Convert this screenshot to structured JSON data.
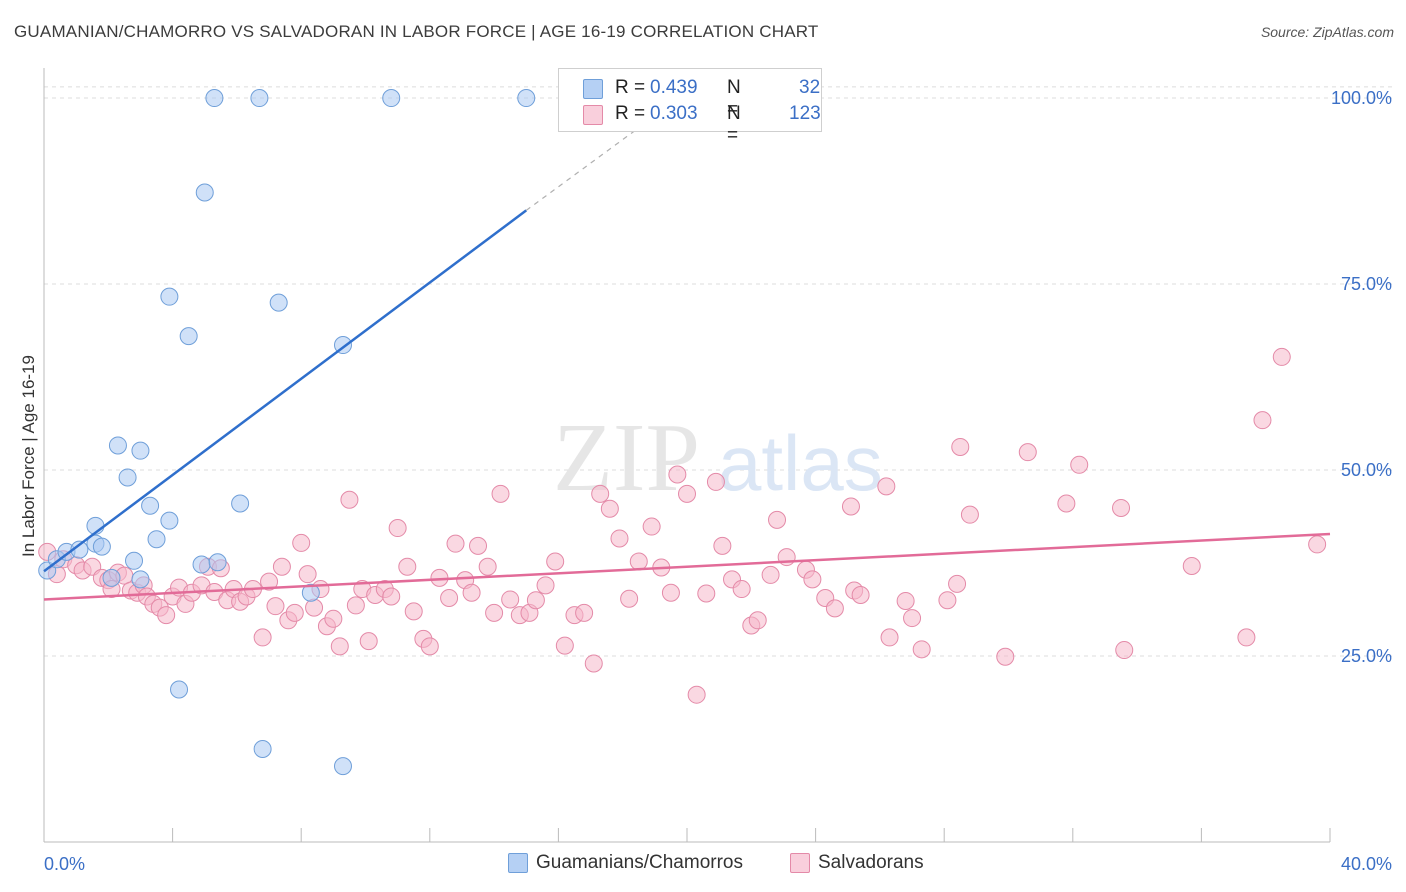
{
  "chart_data": {
    "type": "scatter",
    "title": "GUAMANIAN/CHAMORRO VS SALVADORAN IN LABOR FORCE | AGE 16-19 CORRELATION CHART",
    "source": "Source: ZipAtlas.com",
    "xlabel": "",
    "ylabel": "In Labor Force | Age 16-19",
    "xlim": [
      0,
      40
    ],
    "ylim": [
      0,
      103.5
    ],
    "x_tick_labels": [
      "0.0%",
      "40.0%"
    ],
    "y_tick_labels": [
      "25.0%",
      "50.0%",
      "75.0%",
      "100.0%"
    ],
    "y_tick_values": [
      25,
      50,
      75,
      100
    ],
    "grid": true,
    "watermark": {
      "zip": "ZIP",
      "atlas": "atlas"
    },
    "legend": {
      "position": "top-center",
      "r_label": "R =",
      "n_label": "N =",
      "entries": [
        {
          "r": "0.439",
          "n": "32",
          "color": "#a9c8f2"
        },
        {
          "r": "0.303",
          "n": "123",
          "color": "#f6b8cb"
        }
      ]
    },
    "series": [
      {
        "name": "Guamanians/Chamorros",
        "color": "#a9c8f2",
        "stroke": "#6f9fd9",
        "trend_color": "#2f6fcc",
        "trend": {
          "x0": 0.0,
          "y0": 36.4,
          "x1": 15.0,
          "y1": 84.9,
          "dash_x1": 18.5,
          "dash_y1": 96.0
        },
        "points": [
          [
            0.1,
            36.5
          ],
          [
            0.4,
            38.0
          ],
          [
            0.7,
            39.0
          ],
          [
            1.1,
            39.3
          ],
          [
            1.6,
            40.1
          ],
          [
            1.6,
            42.5
          ],
          [
            1.8,
            39.7
          ],
          [
            2.1,
            35.5
          ],
          [
            2.3,
            53.3
          ],
          [
            2.6,
            49.0
          ],
          [
            2.8,
            37.8
          ],
          [
            3.0,
            52.6
          ],
          [
            3.3,
            45.2
          ],
          [
            3.5,
            40.7
          ],
          [
            3.9,
            43.2
          ],
          [
            3.9,
            73.3
          ],
          [
            4.2,
            20.5
          ],
          [
            4.5,
            68.0
          ],
          [
            4.9,
            37.3
          ],
          [
            5.0,
            87.3
          ],
          [
            5.3,
            100.0
          ],
          [
            5.4,
            37.6
          ],
          [
            6.1,
            45.5
          ],
          [
            6.7,
            100.0
          ],
          [
            6.8,
            12.5
          ],
          [
            7.3,
            72.5
          ],
          [
            8.3,
            33.5
          ],
          [
            9.3,
            66.8
          ],
          [
            9.3,
            10.2
          ],
          [
            10.8,
            100.0
          ],
          [
            15.0,
            100.0
          ],
          [
            3.0,
            35.3
          ]
        ]
      },
      {
        "name": "Salvadorans",
        "color": "#f6b8cb",
        "stroke": "#e48aa8",
        "trend_color": "#e26b98",
        "trend": {
          "x0": 0.0,
          "y0": 32.6,
          "x1": 40.0,
          "y1": 41.4
        },
        "points": [
          [
            0.1,
            39.0
          ],
          [
            0.4,
            36.0
          ],
          [
            0.6,
            38.0
          ],
          [
            1.0,
            37.2
          ],
          [
            1.2,
            36.5
          ],
          [
            1.5,
            37.0
          ],
          [
            1.8,
            35.5
          ],
          [
            2.0,
            35.2
          ],
          [
            2.1,
            34.0
          ],
          [
            2.3,
            36.2
          ],
          [
            2.5,
            35.8
          ],
          [
            2.7,
            33.8
          ],
          [
            2.9,
            33.5
          ],
          [
            3.1,
            34.5
          ],
          [
            3.2,
            33.0
          ],
          [
            3.4,
            32.0
          ],
          [
            3.6,
            31.5
          ],
          [
            3.8,
            30.5
          ],
          [
            4.0,
            33.0
          ],
          [
            4.2,
            34.2
          ],
          [
            4.4,
            32.0
          ],
          [
            4.6,
            33.5
          ],
          [
            4.9,
            34.5
          ],
          [
            5.1,
            37.0
          ],
          [
            5.3,
            33.6
          ],
          [
            5.5,
            36.8
          ],
          [
            5.7,
            32.5
          ],
          [
            5.9,
            34.0
          ],
          [
            6.1,
            32.3
          ],
          [
            6.3,
            33.0
          ],
          [
            6.5,
            34.0
          ],
          [
            6.8,
            27.5
          ],
          [
            7.0,
            35.0
          ],
          [
            7.2,
            31.7
          ],
          [
            7.4,
            37.0
          ],
          [
            7.6,
            29.8
          ],
          [
            7.8,
            30.8
          ],
          [
            8.0,
            40.2
          ],
          [
            8.2,
            36.0
          ],
          [
            8.4,
            31.5
          ],
          [
            8.6,
            34.0
          ],
          [
            8.8,
            29.0
          ],
          [
            9.0,
            30.0
          ],
          [
            9.2,
            26.3
          ],
          [
            9.5,
            46.0
          ],
          [
            9.7,
            31.8
          ],
          [
            9.9,
            34.0
          ],
          [
            10.1,
            27.0
          ],
          [
            10.3,
            33.2
          ],
          [
            10.6,
            34.0
          ],
          [
            10.8,
            33.0
          ],
          [
            11.0,
            42.2
          ],
          [
            11.3,
            37.0
          ],
          [
            11.5,
            31.0
          ],
          [
            11.8,
            27.3
          ],
          [
            12.0,
            26.3
          ],
          [
            12.3,
            35.5
          ],
          [
            12.6,
            32.8
          ],
          [
            12.8,
            40.1
          ],
          [
            13.1,
            35.2
          ],
          [
            13.3,
            33.5
          ],
          [
            13.5,
            39.8
          ],
          [
            13.8,
            37.0
          ],
          [
            14.0,
            30.8
          ],
          [
            14.2,
            46.8
          ],
          [
            14.5,
            32.6
          ],
          [
            14.8,
            30.5
          ],
          [
            15.1,
            30.8
          ],
          [
            15.3,
            32.5
          ],
          [
            15.6,
            34.5
          ],
          [
            15.9,
            37.7
          ],
          [
            16.2,
            26.4
          ],
          [
            16.5,
            30.5
          ],
          [
            16.8,
            30.8
          ],
          [
            17.1,
            24.0
          ],
          [
            17.3,
            46.8
          ],
          [
            17.6,
            44.8
          ],
          [
            17.9,
            40.8
          ],
          [
            18.2,
            32.7
          ],
          [
            18.5,
            37.7
          ],
          [
            18.9,
            42.4
          ],
          [
            19.2,
            36.9
          ],
          [
            19.5,
            33.5
          ],
          [
            19.7,
            49.4
          ],
          [
            20.0,
            46.8
          ],
          [
            20.3,
            19.8
          ],
          [
            20.6,
            33.4
          ],
          [
            20.9,
            48.4
          ],
          [
            21.1,
            39.8
          ],
          [
            21.4,
            35.3
          ],
          [
            21.7,
            34.0
          ],
          [
            22.0,
            29.1
          ],
          [
            22.2,
            29.8
          ],
          [
            22.6,
            35.9
          ],
          [
            22.8,
            43.3
          ],
          [
            23.1,
            38.3
          ],
          [
            23.7,
            36.6
          ],
          [
            23.9,
            35.3
          ],
          [
            24.3,
            32.8
          ],
          [
            24.6,
            31.4
          ],
          [
            25.1,
            45.1
          ],
          [
            25.2,
            33.8
          ],
          [
            25.4,
            33.2
          ],
          [
            26.2,
            47.8
          ],
          [
            26.3,
            27.5
          ],
          [
            26.8,
            32.4
          ],
          [
            27.0,
            30.1
          ],
          [
            27.3,
            25.9
          ],
          [
            28.1,
            32.5
          ],
          [
            28.4,
            34.7
          ],
          [
            28.5,
            53.1
          ],
          [
            28.8,
            44.0
          ],
          [
            29.9,
            24.9
          ],
          [
            30.6,
            52.4
          ],
          [
            31.8,
            45.5
          ],
          [
            32.2,
            50.7
          ],
          [
            33.5,
            44.9
          ],
          [
            33.6,
            25.8
          ],
          [
            35.7,
            37.1
          ],
          [
            37.4,
            27.5
          ],
          [
            37.9,
            56.7
          ],
          [
            38.5,
            65.2
          ],
          [
            39.6,
            40.0
          ]
        ]
      }
    ]
  }
}
